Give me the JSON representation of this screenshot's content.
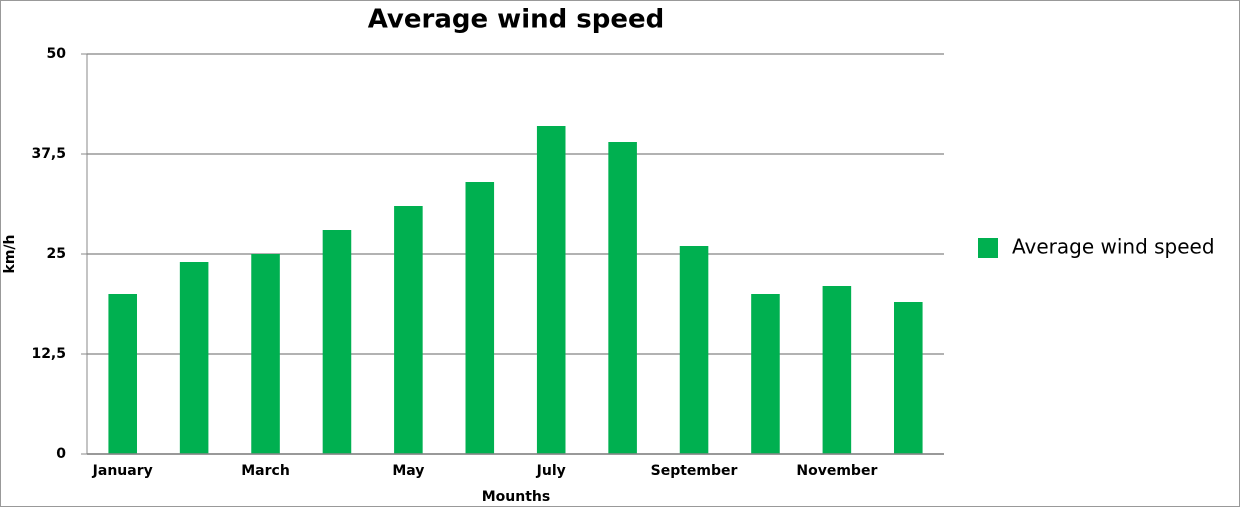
{
  "chart_data": {
    "type": "bar",
    "title": "Average wind speed",
    "x_label": "Mounths",
    "y_label": "km/h",
    "categories": [
      "January",
      null,
      "March",
      null,
      "May",
      null,
      "July",
      null,
      "September",
      null,
      "November",
      null
    ],
    "series": [
      {
        "name": "Average wind speed",
        "color": "#00b050",
        "values": [
          20,
          24,
          25,
          28,
          31,
          34,
          41,
          39,
          26,
          20,
          21,
          19
        ]
      }
    ],
    "ylim": [
      0,
      50
    ],
    "yticks": [
      0,
      {
        "value": 12.5,
        "label": "12,5"
      },
      25,
      {
        "value": 37.5,
        "label": "37,5"
      },
      50
    ],
    "grid": true,
    "legend": "right"
  }
}
